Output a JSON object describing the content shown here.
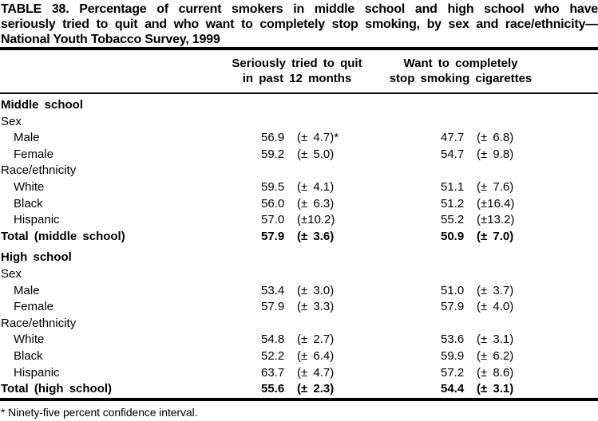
{
  "title": {
    "line1": "TABLE 38. Percentage of current smokers in middle school and high school who have",
    "line2": "seriously tried to quit and who want to completely stop smoking, by sex and race/ethnicity—",
    "line3": "National Youth Tobacco Survey, 1999"
  },
  "columns": {
    "col1_line1": "Seriously tried to quit",
    "col1_line2": "in past 12 months",
    "col2_line1": "Want to completely",
    "col2_line2": "stop smoking cigarettes"
  },
  "table": {
    "rows": [
      {
        "label": "Middle school"
      },
      {
        "label": "Sex"
      },
      {
        "label": "Male",
        "v1": "56.9",
        "ci1": "(± 4.7)*",
        "v2": "47.7",
        "ci2": "(± 6.8)"
      },
      {
        "label": "Female",
        "v1": "59.2",
        "ci1": "(± 5.0)",
        "v2": "54.7",
        "ci2": "(± 9.8)"
      },
      {
        "label": "Race/ethnicity"
      },
      {
        "label": "White",
        "v1": "59.5",
        "ci1": "(± 4.1)",
        "v2": "51.1",
        "ci2": "(± 7.6)"
      },
      {
        "label": "Black",
        "v1": "56.0",
        "ci1": "(± 6.3)",
        "v2": "51.2",
        "ci2": "(±16.4)"
      },
      {
        "label": "Hispanic",
        "v1": "57.0",
        "ci1": "(±10.2)",
        "v2": "55.2",
        "ci2": "(±13.2)"
      },
      {
        "label": "Total (middle school)",
        "v1": "57.9",
        "ci1": "(± 3.6)",
        "v2": "50.9",
        "ci2": "(± 7.0)"
      },
      {
        "label": "High school"
      },
      {
        "label": "Sex"
      },
      {
        "label": "Male",
        "v1": "53.4",
        "ci1": "(± 3.0)",
        "v2": "51.0",
        "ci2": "(± 3.7)"
      },
      {
        "label": "Female",
        "v1": "57.9",
        "ci1": "(± 3.3)",
        "v2": "57.9",
        "ci2": "(± 4.0)"
      },
      {
        "label": "Race/ethnicity"
      },
      {
        "label": "White",
        "v1": "54.8",
        "ci1": "(± 2.7)",
        "v2": "53.6",
        "ci2": "(± 3.1)"
      },
      {
        "label": "Black",
        "v1": "52.2",
        "ci1": "(± 6.4)",
        "v2": "59.9",
        "ci2": "(± 6.2)"
      },
      {
        "label": "Hispanic",
        "v1": "63.7",
        "ci1": "(± 4.7)",
        "v2": "57.2",
        "ci2": "(± 8.6)"
      },
      {
        "label": "Total (high school)",
        "v1": "55.6",
        "ci1": "(± 2.3)",
        "v2": "54.4",
        "ci2": "(± 3.1)"
      }
    ]
  },
  "footnote": "* Ninety-five percent confidence interval.",
  "colors": {
    "text": "#000000",
    "background": "#ffffff",
    "rule": "#000000"
  }
}
